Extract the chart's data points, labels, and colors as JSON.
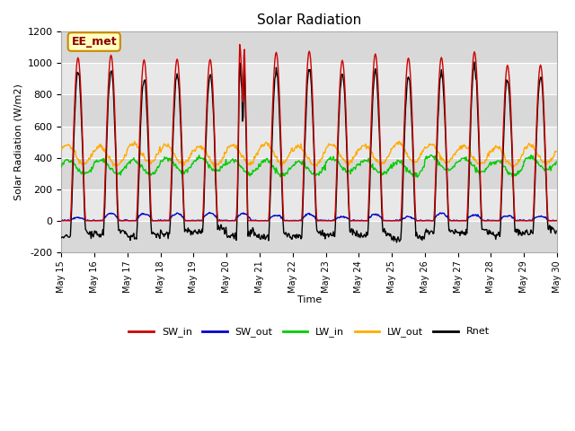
{
  "title": "Solar Radiation",
  "ylabel": "Solar Radiation (W/m2)",
  "xlabel": "Time",
  "ylim": [
    -200,
    1200
  ],
  "yticks": [
    -200,
    0,
    200,
    400,
    600,
    800,
    1000,
    1200
  ],
  "annotation_text": "EE_met",
  "colors": {
    "SW_in": "#cc0000",
    "SW_out": "#0000cc",
    "LW_in": "#00cc00",
    "LW_out": "#ffaa00",
    "Rnet": "#000000"
  },
  "line_width": 1.0,
  "n_days": 15,
  "band_colors": [
    "#d8d8d8",
    "#e8e8e8"
  ],
  "grid_color": "#cccccc"
}
